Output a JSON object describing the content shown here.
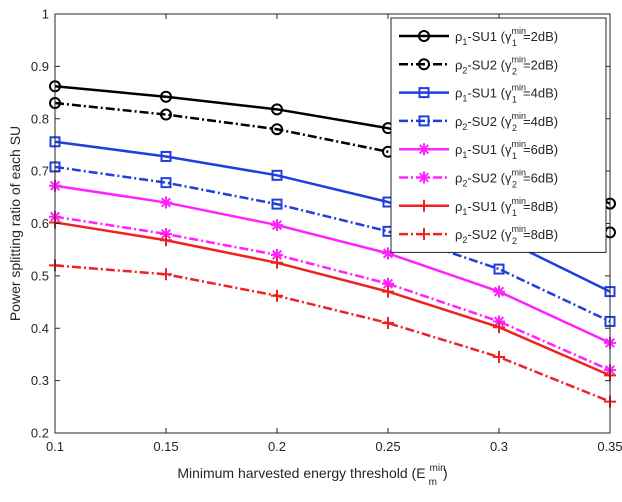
{
  "chart_data": {
    "type": "line",
    "title": "",
    "xlabel": "Minimum harvested energy threshold (E",
    "xlabel_sup": "min",
    "xlabel_sub": "m",
    "xlabel_close": ")",
    "ylabel": "Power splitting ratio of each SU",
    "x": [
      0.1,
      0.15,
      0.2,
      0.25,
      0.3,
      0.35
    ],
    "x_ticks": [
      "0.1",
      "0.15",
      "0.2",
      "0.25",
      "0.3",
      "0.35"
    ],
    "y_ticks": [
      "0.2",
      "0.3",
      "0.4",
      "0.5",
      "0.6",
      "0.7",
      "0.8",
      "0.9",
      "1"
    ],
    "xlim": [
      0.1,
      0.35
    ],
    "ylim": [
      0.2,
      1.0
    ],
    "grid": false,
    "legend_position": "top-right",
    "series": [
      {
        "rho_sub": "1",
        "su": "SU1",
        "gamma_sub": "1",
        "gamma_val": "2dB",
        "color": "#000000",
        "dash": "solid",
        "marker": "circle",
        "values": [
          0.862,
          0.842,
          0.818,
          0.782,
          0.725,
          0.638
        ]
      },
      {
        "rho_sub": "2",
        "su": "SU2",
        "gamma_sub": "2",
        "gamma_val": "2dB",
        "color": "#000000",
        "dash": "dashdot",
        "marker": "circle",
        "values": [
          0.83,
          0.808,
          0.78,
          0.737,
          0.672,
          0.583
        ]
      },
      {
        "rho_sub": "1",
        "su": "SU1",
        "gamma_sub": "1",
        "gamma_val": "4dB",
        "color": "#1f3fdc",
        "dash": "solid",
        "marker": "square",
        "values": [
          0.756,
          0.728,
          0.692,
          0.641,
          0.574,
          0.47
        ]
      },
      {
        "rho_sub": "2",
        "su": "SU2",
        "gamma_sub": "2",
        "gamma_val": "4dB",
        "color": "#1f3fdc",
        "dash": "dashdot",
        "marker": "square",
        "values": [
          0.708,
          0.678,
          0.637,
          0.585,
          0.513,
          0.413
        ]
      },
      {
        "rho_sub": "1",
        "su": "SU1",
        "gamma_sub": "1",
        "gamma_val": "6dB",
        "color": "#ff22ff",
        "dash": "solid",
        "marker": "star",
        "values": [
          0.672,
          0.64,
          0.597,
          0.543,
          0.47,
          0.372
        ]
      },
      {
        "rho_sub": "2",
        "su": "SU2",
        "gamma_sub": "2",
        "gamma_val": "6dB",
        "color": "#ff22ff",
        "dash": "dashdot",
        "marker": "star",
        "values": [
          0.613,
          0.58,
          0.54,
          0.485,
          0.413,
          0.32
        ]
      },
      {
        "rho_sub": "1",
        "su": "SU1",
        "gamma_sub": "1",
        "gamma_val": "8dB",
        "color": "#ee2222",
        "dash": "solid",
        "marker": "plus",
        "values": [
          0.602,
          0.568,
          0.525,
          0.47,
          0.402,
          0.31
        ]
      },
      {
        "rho_sub": "2",
        "su": "SU2",
        "gamma_sub": "2",
        "gamma_val": "8dB",
        "color": "#ee2222",
        "dash": "dashdot",
        "marker": "plus",
        "values": [
          0.52,
          0.503,
          0.462,
          0.41,
          0.345,
          0.26
        ]
      }
    ],
    "legend_rho": "ρ",
    "legend_gamma": "γ",
    "legend_min": "min"
  }
}
